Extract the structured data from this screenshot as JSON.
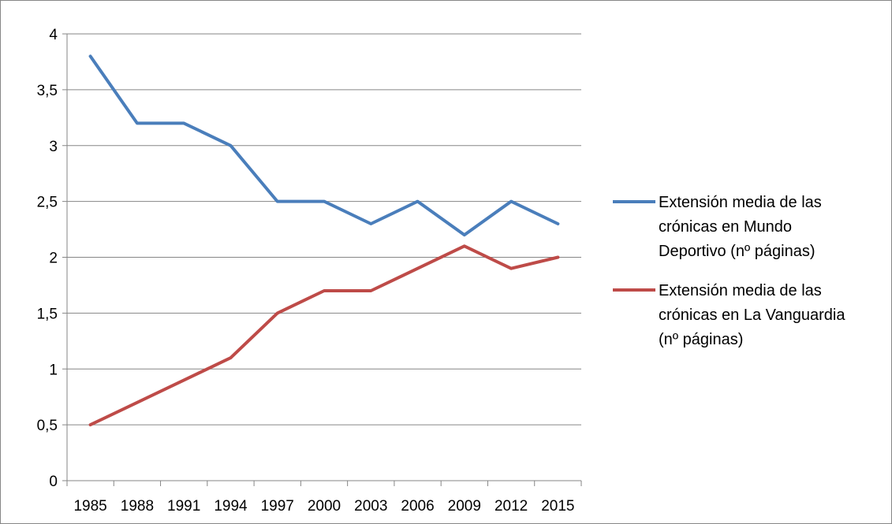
{
  "chart_data": {
    "type": "line",
    "title": "",
    "xlabel": "",
    "ylabel": "",
    "categories": [
      "1985",
      "1988",
      "1991",
      "1994",
      "1997",
      "2000",
      "2003",
      "2006",
      "2009",
      "2012",
      "2015"
    ],
    "y_ticks": [
      "0",
      "0,5",
      "1",
      "1,5",
      "2",
      "2,5",
      "3",
      "3,5",
      "4"
    ],
    "ylim": [
      0,
      4
    ],
    "ystep": 0.5,
    "grid": true,
    "legend_position": "right",
    "series": [
      {
        "name_lines": [
          "Extensión media de las",
          "crónicas en Mundo",
          "Deportivo (nº páginas)"
        ],
        "color": "#4a7ebb",
        "values": [
          3.8,
          3.2,
          3.2,
          3.0,
          2.5,
          2.5,
          2.3,
          2.5,
          2.2,
          2.5,
          2.3
        ]
      },
      {
        "name_lines": [
          "Extensión media de las",
          "crónicas en La Vanguardia",
          "(nº páginas)"
        ],
        "color": "#be4b48",
        "values": [
          0.5,
          0.7,
          0.9,
          1.1,
          1.5,
          1.7,
          1.7,
          1.9,
          2.1,
          1.9,
          2.0
        ]
      }
    ]
  }
}
